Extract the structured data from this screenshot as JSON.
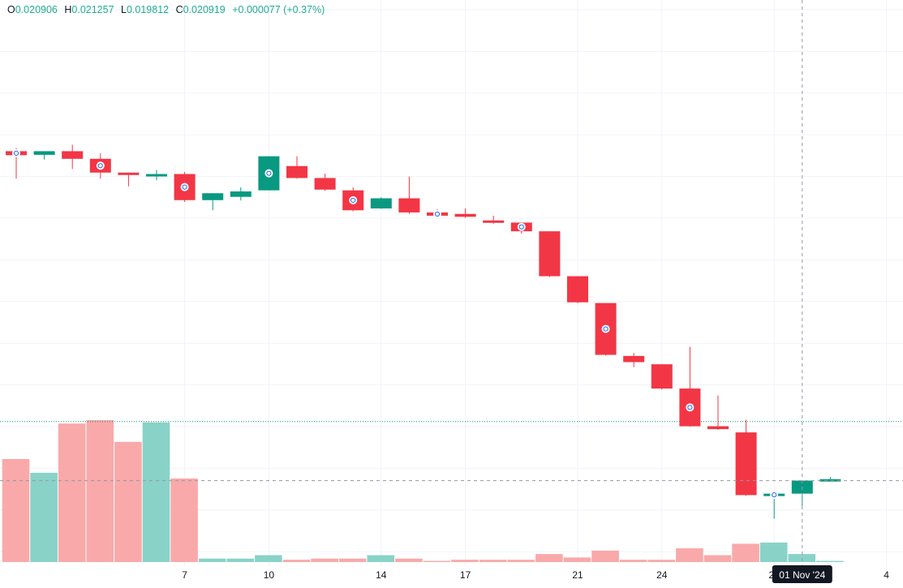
{
  "legend": {
    "o_label": "O",
    "o_value": "0.020906",
    "h_label": "H",
    "h_value": "0.021257",
    "l_label": "L",
    "l_value": "0.019812",
    "c_label": "C",
    "c_value": "0.020919",
    "change": "+0.000077 (+0.37%)"
  },
  "colors": {
    "up": "#089981",
    "down": "#f23645",
    "volume_up": "#89d2c8",
    "volume_down": "#f9a9a9",
    "grid": "#f0f3fa",
    "crosshair": "#9598a1",
    "price_line": "#089981",
    "marker_ring": "#2962ff",
    "tooltip_bg": "#131722",
    "tooltip_text": "#ffffff",
    "axis_text": "#131722"
  },
  "crosshair": {
    "date_label": "01 Nov '24"
  },
  "chart_data": {
    "type": "candlestick",
    "price_scale": "hidden",
    "x_tick_labels": [
      {
        "at": 6,
        "label": "7"
      },
      {
        "at": 9,
        "label": "10"
      },
      {
        "at": 13,
        "label": "14"
      },
      {
        "at": 16,
        "label": "17"
      },
      {
        "at": 20,
        "label": "21"
      },
      {
        "at": 23,
        "label": "24"
      },
      {
        "at": 27,
        "label": "28"
      },
      {
        "at": 31,
        "label": "4"
      }
    ],
    "crosshair_index": 28,
    "current_price": 0.020919,
    "candles": [
      {
        "day": "Oct 5",
        "o": 0.02838,
        "h": 0.02847,
        "l": 0.02762,
        "c": 0.02827,
        "v": 9.0,
        "mark": true
      },
      {
        "day": "Oct 6",
        "o": 0.02828,
        "h": 0.02836,
        "l": 0.02815,
        "c": 0.02838,
        "v": 7.8,
        "mark": false
      },
      {
        "day": "Oct 7",
        "o": 0.02838,
        "h": 0.02856,
        "l": 0.02789,
        "c": 0.02817,
        "v": 12.1,
        "mark": false
      },
      {
        "day": "Oct 8",
        "o": 0.02817,
        "h": 0.02832,
        "l": 0.02762,
        "c": 0.02779,
        "v": 12.4,
        "mark": true
      },
      {
        "day": "Oct 9",
        "o": 0.02779,
        "h": 0.02778,
        "l": 0.02741,
        "c": 0.02773,
        "v": 10.5,
        "mark": false
      },
      {
        "day": "Oct 10",
        "o": 0.02769,
        "h": 0.02786,
        "l": 0.02758,
        "c": 0.02775,
        "v": 12.2,
        "mark": false
      },
      {
        "day": "Oct 11",
        "o": 0.02775,
        "h": 0.02781,
        "l": 0.02698,
        "c": 0.02703,
        "v": 7.3,
        "mark": true
      },
      {
        "day": "Oct 12",
        "o": 0.02703,
        "h": 0.02719,
        "l": 0.02675,
        "c": 0.02722,
        "v": 0.3,
        "mark": false
      },
      {
        "day": "Oct 13",
        "o": 0.02712,
        "h": 0.02738,
        "l": 0.02702,
        "c": 0.02727,
        "v": 0.3,
        "mark": false
      },
      {
        "day": "Oct 14",
        "o": 0.0273,
        "h": 0.02823,
        "l": 0.0273,
        "c": 0.02824,
        "v": 0.6,
        "mark": true
      },
      {
        "day": "Oct 15",
        "o": 0.02797,
        "h": 0.02824,
        "l": 0.02762,
        "c": 0.02764,
        "v": 0.2,
        "mark": false
      },
      {
        "day": "Oct 16",
        "o": 0.02764,
        "h": 0.02776,
        "l": 0.02729,
        "c": 0.02732,
        "v": 0.3,
        "mark": false
      },
      {
        "day": "Oct 17",
        "o": 0.0273,
        "h": 0.02738,
        "l": 0.02672,
        "c": 0.02675,
        "v": 0.3,
        "mark": true
      },
      {
        "day": "Oct 18",
        "o": 0.0268,
        "h": 0.02711,
        "l": 0.02679,
        "c": 0.02708,
        "v": 0.6,
        "mark": false
      },
      {
        "day": "Oct 19",
        "o": 0.02708,
        "h": 0.02768,
        "l": 0.02665,
        "c": 0.02669,
        "v": 0.3,
        "mark": false
      },
      {
        "day": "Oct 20",
        "o": 0.02669,
        "h": 0.02678,
        "l": 0.02658,
        "c": 0.0266,
        "v": 0.1,
        "mark": true
      },
      {
        "day": "Oct 21",
        "o": 0.02665,
        "h": 0.0268,
        "l": 0.02654,
        "c": 0.02657,
        "v": 0.2,
        "mark": false
      },
      {
        "day": "Oct 22",
        "o": 0.02647,
        "h": 0.0266,
        "l": 0.02638,
        "c": 0.02641,
        "v": 0.2,
        "mark": false
      },
      {
        "day": "Oct 23",
        "o": 0.02641,
        "h": 0.02641,
        "l": 0.0261,
        "c": 0.02617,
        "v": 0.2,
        "mark": true
      },
      {
        "day": "Oct 24",
        "o": 0.02617,
        "h": 0.02617,
        "l": 0.02491,
        "c": 0.02493,
        "v": 0.7,
        "mark": false
      },
      {
        "day": "Oct 25",
        "o": 0.02493,
        "h": 0.02493,
        "l": 0.02419,
        "c": 0.02421,
        "v": 0.4,
        "mark": false
      },
      {
        "day": "Oct 26",
        "o": 0.02419,
        "h": 0.02419,
        "l": 0.02274,
        "c": 0.02276,
        "v": 1.0,
        "mark": true
      },
      {
        "day": "Oct 27",
        "o": 0.02273,
        "h": 0.02281,
        "l": 0.02242,
        "c": 0.02256,
        "v": 0.2,
        "mark": false
      },
      {
        "day": "Oct 28",
        "o": 0.0225,
        "h": 0.0225,
        "l": 0.0218,
        "c": 0.02183,
        "v": 0.2,
        "mark": false
      },
      {
        "day": "Oct 29",
        "o": 0.02183,
        "h": 0.02298,
        "l": 0.02078,
        "c": 0.02079,
        "v": 1.2,
        "mark": true
      },
      {
        "day": "Oct 30",
        "o": 0.02079,
        "h": 0.02164,
        "l": 0.02069,
        "c": 0.02071,
        "v": 0.6,
        "mark": false
      },
      {
        "day": "Oct 31",
        "o": 0.02062,
        "h": 0.02097,
        "l": 0.01887,
        "c": 0.01889,
        "v": 1.6,
        "mark": false
      },
      {
        "day": "Nov 1",
        "o": 0.01889,
        "h": 0.01883,
        "l": 0.01824,
        "c": 0.01893,
        "v": 1.7,
        "mark": true
      },
      {
        "day": "Nov 2",
        "o": 0.01893,
        "h": 0.01929,
        "l": 0.01859,
        "c": 0.01929,
        "v": 0.7,
        "mark": false
      },
      {
        "day": "Nov 3",
        "o": 0.01929,
        "h": 0.01939,
        "l": 0.0193,
        "c": 0.01933,
        "v": 0.1,
        "mark": false
      }
    ]
  }
}
